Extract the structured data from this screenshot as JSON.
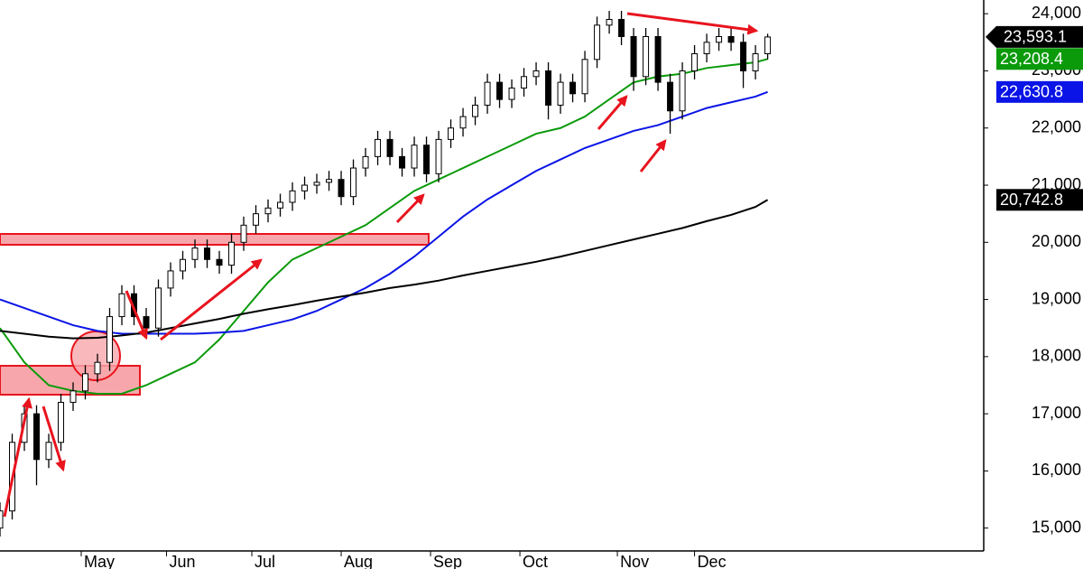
{
  "chart_data": {
    "type": "candlestick",
    "xlim": [
      0,
      242.2
    ],
    "ylim": [
      14600,
      24240
    ],
    "xticks": [
      {
        "value": 20,
        "label": "May"
      },
      {
        "value": 41,
        "label": "Jun"
      },
      {
        "value": 62,
        "label": "Jul"
      },
      {
        "value": 84,
        "label": "Aug"
      },
      {
        "value": 106,
        "label": "Sep"
      },
      {
        "value": 128,
        "label": "Oct"
      },
      {
        "value": 152,
        "label": "Nov"
      },
      {
        "value": 171,
        "label": "Dec"
      }
    ],
    "yticks": [
      {
        "value": 15000,
        "label": "15,000"
      },
      {
        "value": 16000,
        "label": "16,000"
      },
      {
        "value": 17000,
        "label": "17,000"
      },
      {
        "value": 18000,
        "label": "18,000"
      },
      {
        "value": 19000,
        "label": "19,000"
      },
      {
        "value": 20000,
        "label": "20,000"
      },
      {
        "value": 21000,
        "label": "21,000"
      },
      {
        "value": 22000,
        "label": "22,000"
      },
      {
        "value": 23000,
        "label": "23,000"
      },
      {
        "value": 24000,
        "label": "24,000"
      }
    ],
    "grid": true,
    "up_color": "#ffffff",
    "down_color": "#000000",
    "x": [
      0,
      3,
      6,
      9,
      12,
      15,
      18,
      21,
      24,
      27,
      30,
      33,
      36,
      39,
      42,
      45,
      48,
      51,
      54,
      57,
      60,
      63,
      66,
      69,
      72,
      75,
      78,
      81,
      84,
      87,
      90,
      93,
      96,
      99,
      102,
      105,
      108,
      111,
      114,
      117,
      120,
      123,
      126,
      129,
      132,
      135,
      138,
      141,
      144,
      147,
      150,
      153,
      156,
      159,
      162,
      165,
      168,
      171,
      174,
      177,
      180,
      183,
      186,
      189
    ],
    "open": [
      15000,
      15300,
      16500,
      17000,
      16200,
      16500,
      17200,
      17400,
      17700,
      17900,
      18700,
      19100,
      18700,
      18500,
      19200,
      19500,
      19700,
      19900,
      19700,
      19600,
      20000,
      20300,
      20500,
      20600,
      20700,
      20900,
      21000,
      21050,
      21100,
      20800,
      21300,
      21500,
      21800,
      21500,
      21300,
      21700,
      21200,
      21800,
      22000,
      22200,
      22400,
      22800,
      22500,
      22700,
      22900,
      23000,
      22400,
      22800,
      22600,
      23200,
      23800,
      23900,
      23600,
      22900,
      23600,
      22800,
      22300,
      23000,
      23300,
      23500,
      23600,
      23500,
      23000,
      23300
    ],
    "high": [
      15450,
      16650,
      17150,
      17150,
      16650,
      17350,
      17550,
      17850,
      18050,
      18850,
      19250,
      19250,
      18850,
      19350,
      19650,
      19850,
      20050,
      20050,
      19850,
      20150,
      20450,
      20650,
      20750,
      20850,
      21050,
      21150,
      21200,
      21250,
      21250,
      21450,
      21650,
      21950,
      21950,
      21650,
      21850,
      21850,
      21950,
      22150,
      22350,
      22550,
      22950,
      22950,
      22850,
      23050,
      23150,
      23150,
      22950,
      22950,
      23350,
      23950,
      24050,
      24050,
      23750,
      23750,
      23750,
      22950,
      23150,
      23450,
      23650,
      23750,
      23750,
      23650,
      23450,
      23650
    ],
    "low": [
      14850,
      15150,
      16350,
      15750,
      16050,
      16350,
      17050,
      17250,
      17550,
      17750,
      18550,
      18550,
      18350,
      18350,
      19050,
      19350,
      19550,
      19550,
      19450,
      19450,
      19850,
      20150,
      20350,
      20450,
      20550,
      20750,
      20850,
      20900,
      20650,
      20650,
      21150,
      21350,
      21350,
      21150,
      21150,
      21050,
      21050,
      21650,
      21850,
      22050,
      22250,
      22350,
      22350,
      22550,
      22750,
      22150,
      22250,
      22450,
      22450,
      23050,
      23650,
      23450,
      22650,
      22750,
      22650,
      21900,
      22150,
      22850,
      23150,
      23350,
      23350,
      22700,
      22850,
      23200
    ],
    "close": [
      15300,
      16500,
      17000,
      16200,
      16500,
      17200,
      17400,
      17700,
      17900,
      18700,
      19100,
      18700,
      18500,
      19200,
      19500,
      19700,
      19900,
      19700,
      19600,
      20000,
      20300,
      20500,
      20600,
      20700,
      20900,
      21000,
      21050,
      21100,
      20800,
      21300,
      21500,
      21800,
      21500,
      21300,
      21700,
      21200,
      21800,
      22000,
      22200,
      22400,
      22800,
      22500,
      22700,
      22900,
      23000,
      22400,
      22800,
      22600,
      23200,
      23800,
      23900,
      23600,
      22900,
      23600,
      22800,
      22300,
      23000,
      23300,
      23500,
      23600,
      23500,
      23000,
      23300,
      23593.1
    ],
    "close_last_label": "23,593.1",
    "ma_x": [
      0,
      6,
      12,
      18,
      24,
      30,
      36,
      42,
      48,
      54,
      60,
      66,
      72,
      78,
      84,
      90,
      96,
      102,
      108,
      114,
      120,
      126,
      132,
      138,
      144,
      150,
      156,
      162,
      168,
      174,
      180,
      186,
      189
    ],
    "moving_averages": [
      {
        "color": "#0a9a0a",
        "values": [
          18500,
          17900,
          17500,
          17400,
          17350,
          17350,
          17500,
          17700,
          17900,
          18300,
          18800,
          19300,
          19700,
          19900,
          20100,
          20300,
          20600,
          20900,
          21100,
          21300,
          21500,
          21700,
          21900,
          22000,
          22200,
          22500,
          22800,
          22900,
          22950,
          23050,
          23100,
          23150,
          23208.4
        ],
        "last_label": "23,208.4"
      },
      {
        "color": "#0a14e6",
        "values": [
          19000,
          18850,
          18700,
          18550,
          18450,
          18400,
          18400,
          18400,
          18400,
          18420,
          18450,
          18550,
          18650,
          18800,
          19000,
          19200,
          19450,
          19750,
          20100,
          20450,
          20750,
          21000,
          21250,
          21450,
          21650,
          21800,
          21950,
          22050,
          22200,
          22350,
          22450,
          22550,
          22630.8
        ],
        "last_label": "22,630.8"
      },
      {
        "color": "#000000",
        "values": [
          18450,
          18400,
          18350,
          18320,
          18330,
          18370,
          18420,
          18500,
          18580,
          18660,
          18750,
          18830,
          18900,
          18980,
          19050,
          19120,
          19200,
          19260,
          19330,
          19420,
          19500,
          19580,
          19660,
          19750,
          19850,
          19950,
          20050,
          20150,
          20250,
          20370,
          20480,
          20620,
          20742.8
        ],
        "last_label": "20,742.8"
      }
    ]
  }
}
